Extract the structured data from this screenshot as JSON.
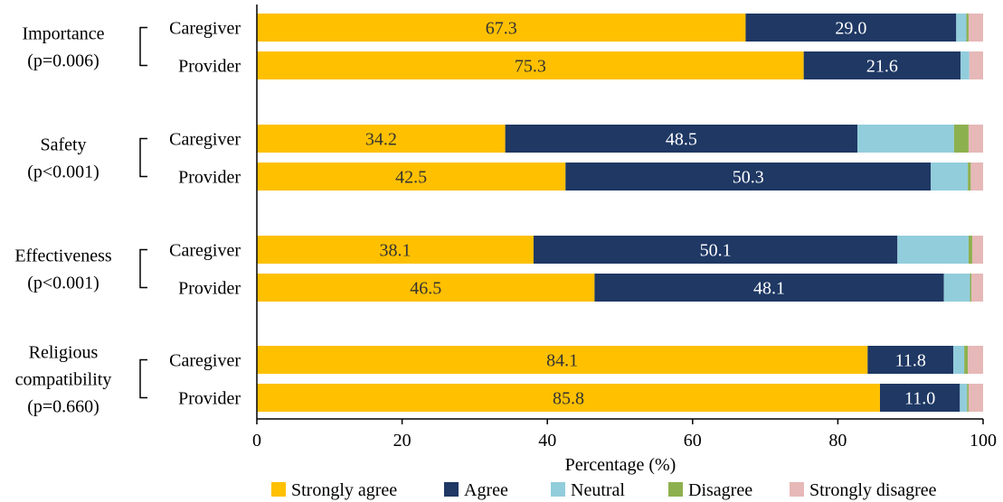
{
  "chart_data": {
    "type": "bar",
    "orientation": "horizontal",
    "stacked": true,
    "xlabel": "Percentage (%)",
    "xlim": [
      0,
      100
    ],
    "xticks": [
      0,
      20,
      40,
      60,
      80,
      100
    ],
    "grid": false,
    "legend_position": "bottom",
    "series": [
      {
        "name": "Strongly agree",
        "color": "#FFC000"
      },
      {
        "name": "Agree",
        "color": "#1F3864"
      },
      {
        "name": "Neutral",
        "color": "#92CDDC"
      },
      {
        "name": "Disagree",
        "color": "#8DB04F"
      },
      {
        "name": "Strongly disagree",
        "color": "#E6B8B7"
      }
    ],
    "groups": [
      {
        "label_lines": [
          "Importance",
          "(p=0.006)"
        ],
        "bars": [
          {
            "label": "Caregiver",
            "values": [
              67.3,
              29.0,
              1.4,
              0.3,
              2.0
            ]
          },
          {
            "label": "Provider",
            "values": [
              75.3,
              21.6,
              1.2,
              0.0,
              1.9
            ]
          }
        ]
      },
      {
        "label_lines": [
          "Safety",
          "(p<0.001)"
        ],
        "bars": [
          {
            "label": "Caregiver",
            "values": [
              34.2,
              48.5,
              13.3,
              2.0,
              2.0
            ]
          },
          {
            "label": "Provider",
            "values": [
              42.5,
              50.3,
              5.1,
              0.4,
              1.7
            ]
          }
        ]
      },
      {
        "label_lines": [
          "Effectiveness",
          "(p<0.001)"
        ],
        "bars": [
          {
            "label": "Caregiver",
            "values": [
              38.1,
              50.1,
              9.8,
              0.5,
              1.5
            ]
          },
          {
            "label": "Provider",
            "values": [
              46.5,
              48.1,
              3.6,
              0.2,
              1.6
            ]
          }
        ]
      },
      {
        "label_lines": [
          "Religious",
          "compatibility",
          "(p=0.660)"
        ],
        "bars": [
          {
            "label": "Caregiver",
            "values": [
              84.1,
              11.8,
              1.5,
              0.5,
              2.1
            ]
          },
          {
            "label": "Provider",
            "values": [
              85.8,
              11.0,
              1.0,
              0.2,
              2.0
            ]
          }
        ]
      }
    ],
    "data_label_series": [
      0,
      1
    ]
  }
}
